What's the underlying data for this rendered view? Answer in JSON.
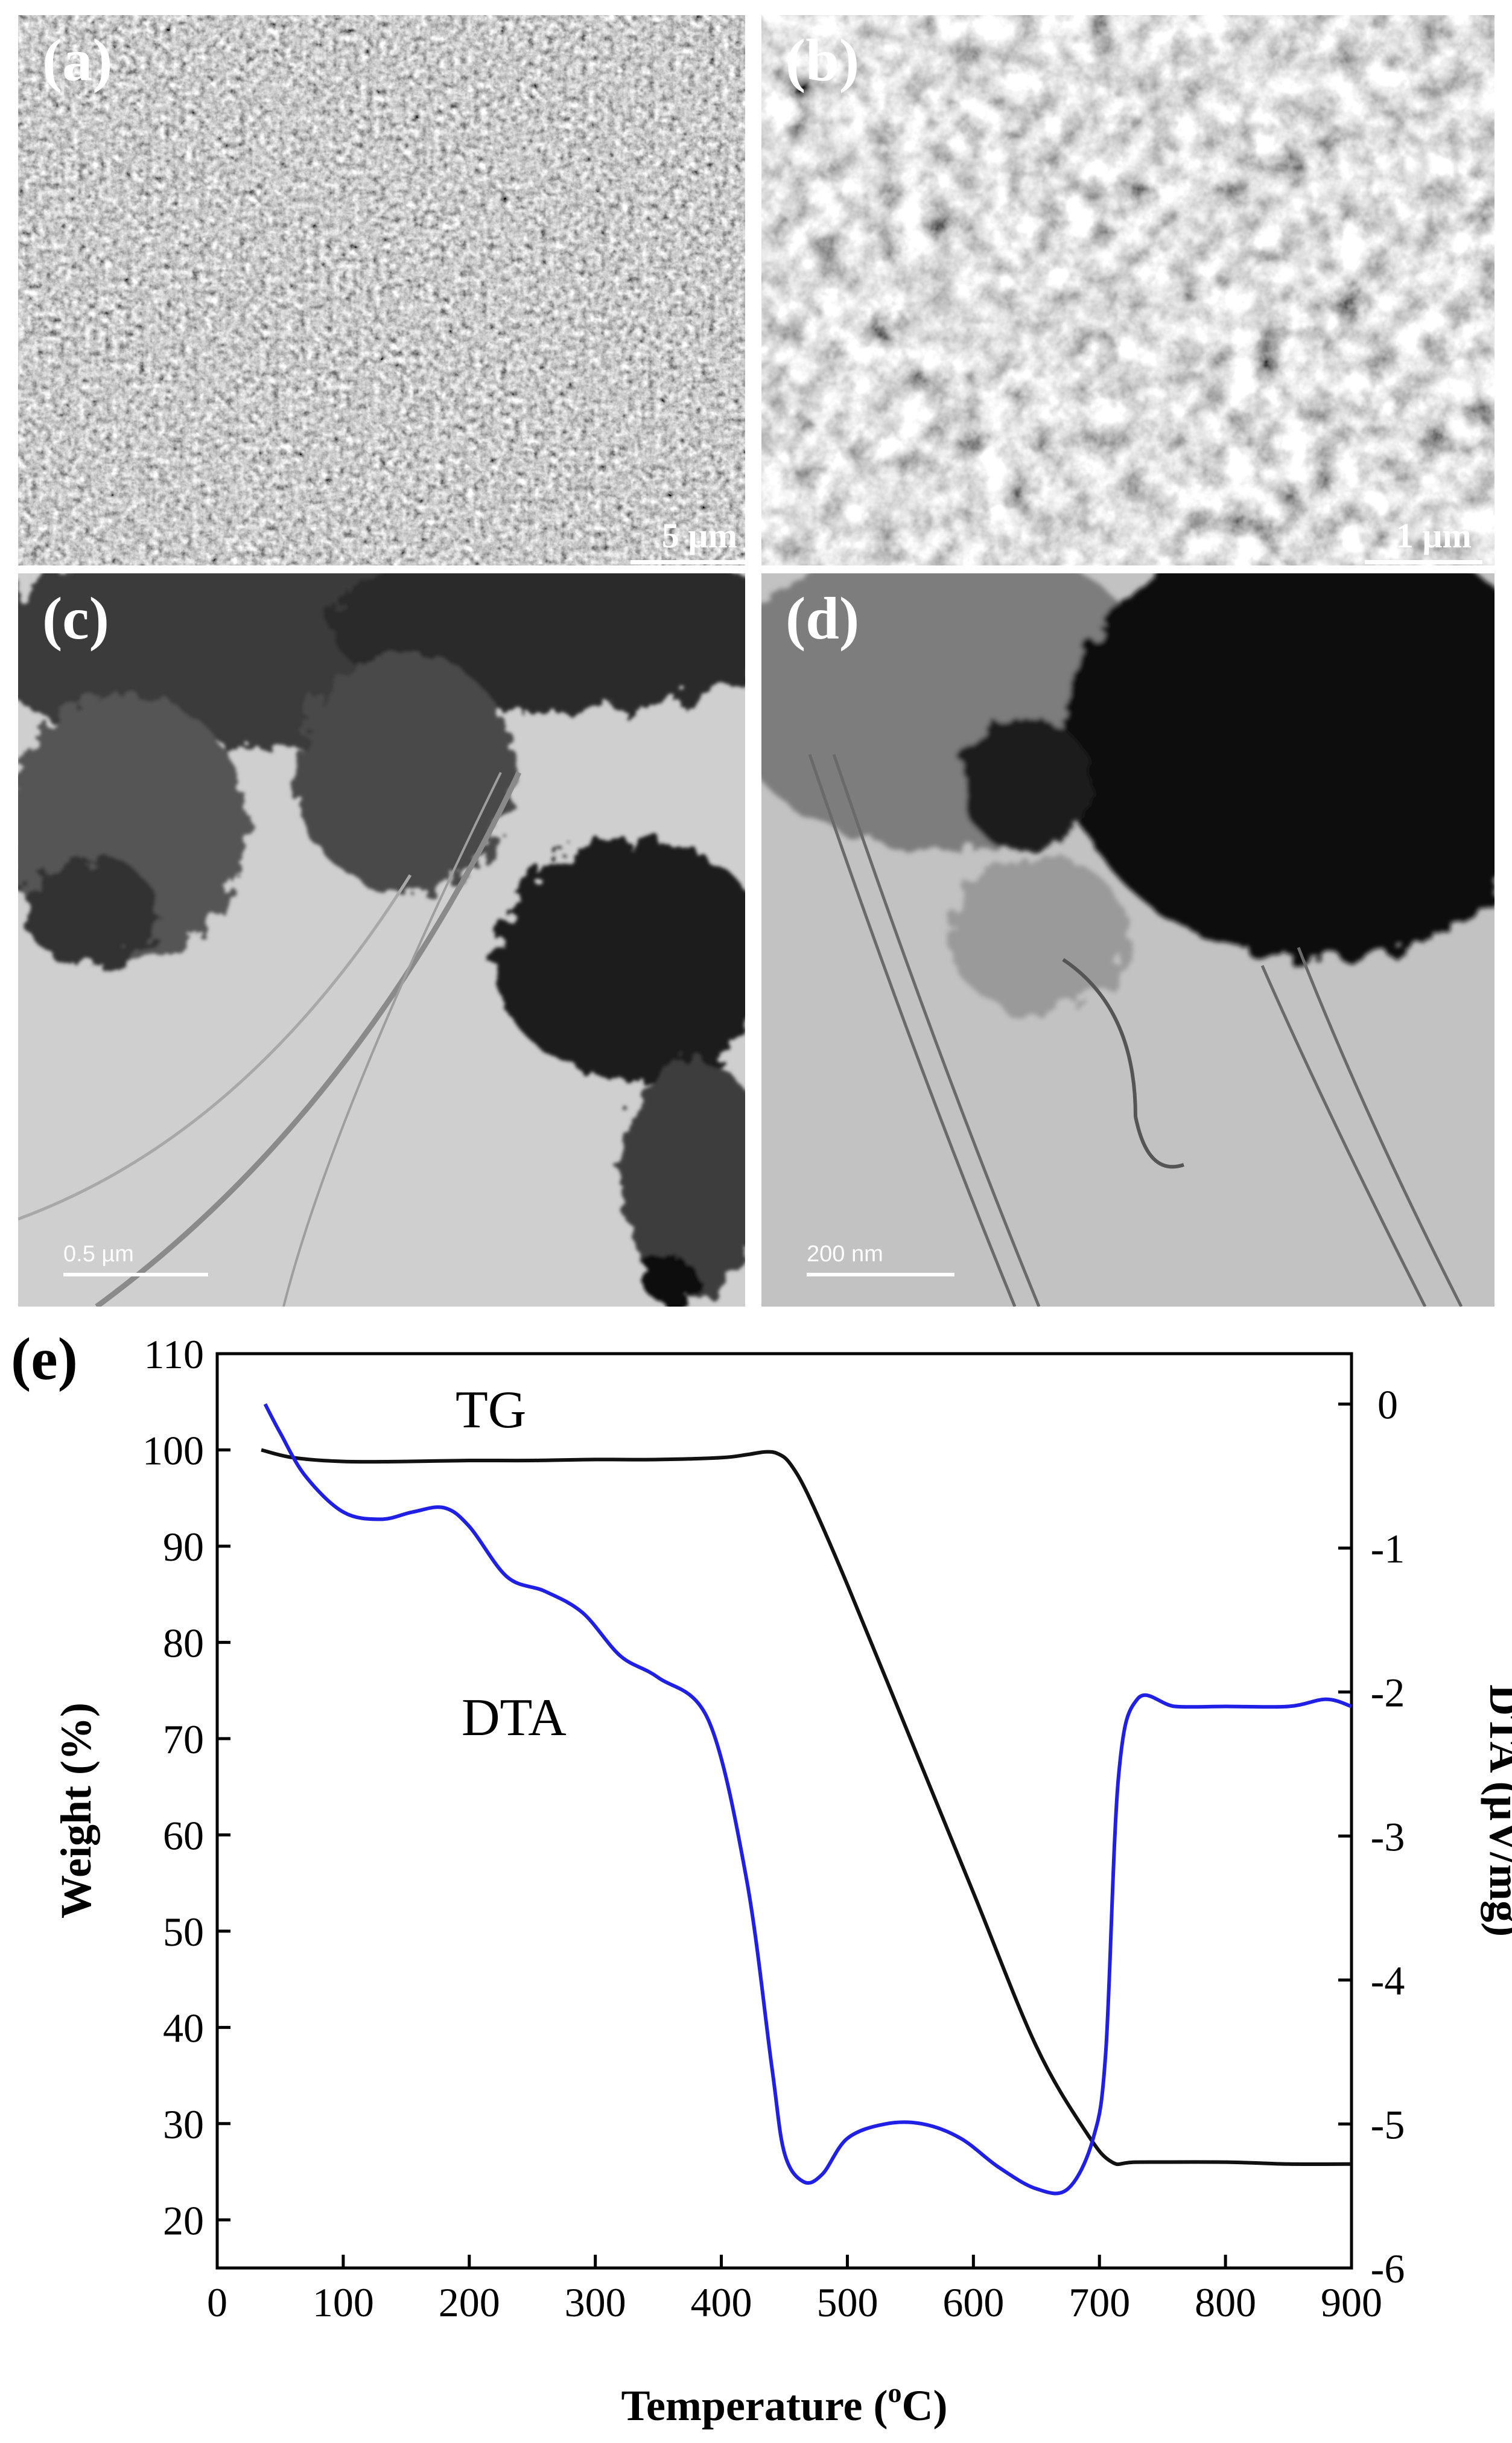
{
  "panels": [
    {
      "id": "a",
      "label": "(a)",
      "scale": "5 µm"
    },
    {
      "id": "b",
      "label": "(b)",
      "scale": "1 µm"
    },
    {
      "id": "c",
      "label": "(c)",
      "scale": "0.5 µm"
    },
    {
      "id": "d",
      "label": "(d)",
      "scale": "200 nm"
    }
  ],
  "chart_label": "(e)",
  "colors": {
    "tg": "#111111",
    "dta": "#1f1fe6"
  },
  "chart_data": {
    "type": "line",
    "xlabel": "Temperature (",
    "xlabel_sup": "o",
    "xlabel_end": "C)",
    "ylabel": "Weight (%)",
    "y2label": "DTA (µV/mg)",
    "xlim": [
      0,
      900
    ],
    "ylim": [
      15,
      110
    ],
    "y2lim": [
      -6,
      0.35
    ],
    "xticks": [
      0,
      100,
      200,
      300,
      400,
      500,
      600,
      700,
      800,
      900
    ],
    "yticks": [
      20,
      30,
      40,
      50,
      60,
      70,
      80,
      90,
      100,
      110
    ],
    "y2ticks": [
      0,
      -1,
      -2,
      -3,
      -4,
      -5,
      -6
    ],
    "series": [
      {
        "name": "TG",
        "axis": "left",
        "x": [
          35,
          60,
          100,
          150,
          200,
          250,
          300,
          350,
          400,
          420,
          435,
          445,
          455,
          470,
          500,
          550,
          600,
          650,
          690,
          710,
          730,
          800,
          850,
          900
        ],
        "y": [
          100,
          99.2,
          98.8,
          98.8,
          98.9,
          98.9,
          99.0,
          99.0,
          99.2,
          99.5,
          99.8,
          99.6,
          98.5,
          95,
          86,
          70,
          54,
          38,
          29,
          26,
          26,
          26,
          25.8,
          25.8
        ]
      },
      {
        "name": "DTA",
        "axis": "right",
        "x": [
          38,
          50,
          70,
          100,
          130,
          155,
          180,
          200,
          230,
          260,
          290,
          320,
          350,
          390,
          420,
          440,
          450,
          465,
          480,
          500,
          530,
          560,
          590,
          620,
          650,
          675,
          695,
          705,
          715,
          730,
          760,
          800,
          850,
          880,
          900
        ],
        "y": [
          0,
          -0.2,
          -0.5,
          -0.75,
          -0.8,
          -0.75,
          -0.72,
          -0.85,
          -1.2,
          -1.3,
          -1.45,
          -1.75,
          -1.9,
          -2.2,
          -3.3,
          -4.6,
          -5.2,
          -5.4,
          -5.35,
          -5.1,
          -5.0,
          -5.0,
          -5.1,
          -5.3,
          -5.45,
          -5.45,
          -5.1,
          -4.5,
          -2.6,
          -2.05,
          -2.1,
          -2.1,
          -2.1,
          -2.05,
          -2.1
        ]
      }
    ],
    "annotations": [
      "TG",
      "DTA"
    ]
  }
}
